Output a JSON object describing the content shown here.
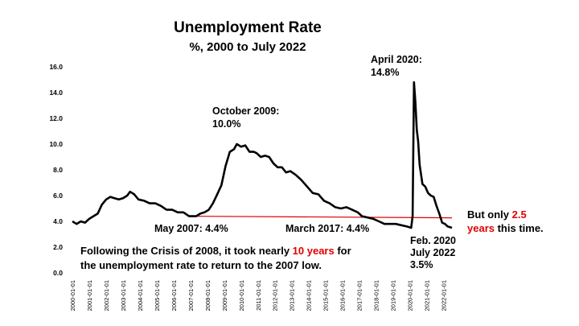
{
  "chart_data": {
    "type": "line",
    "title": "Unemployment Rate",
    "subtitle": "%, 2000 to July 2022",
    "ylim": [
      0,
      16
    ],
    "yticks": [
      "0.0",
      "2.0",
      "4.0",
      "6.0",
      "8.0",
      "10.0",
      "12.0",
      "14.0",
      "16.0"
    ],
    "xticks": [
      "2000-01-01",
      "2001-01-01",
      "2002-01-01",
      "2003-01-01",
      "2004-01-01",
      "2005-01-01",
      "2006-01-01",
      "2007-01-01",
      "2008-01-01",
      "2009-01-01",
      "2010-01-01",
      "2011-01-01",
      "2012-01-01",
      "2013-01-01",
      "2014-01-01",
      "2015-01-01",
      "2016-01-01",
      "2017-01-01",
      "2018-01-01",
      "2019-01-01",
      "2020-01-01",
      "2021-01-01",
      "2022-01-01"
    ],
    "grid": false,
    "legend": "none",
    "series_color": "#000000",
    "reference_color": "#e00000",
    "reference_line": {
      "from": "2007-05",
      "to": "2022-07",
      "value": 4.4
    },
    "series": [
      {
        "points": [
          [
            "2000-01",
            4.0
          ],
          [
            "2000-04",
            3.8
          ],
          [
            "2000-07",
            4.0
          ],
          [
            "2000-10",
            3.9
          ],
          [
            "2001-01",
            4.2
          ],
          [
            "2001-04",
            4.4
          ],
          [
            "2001-07",
            4.6
          ],
          [
            "2001-10",
            5.3
          ],
          [
            "2002-01",
            5.7
          ],
          [
            "2002-04",
            5.9
          ],
          [
            "2002-07",
            5.8
          ],
          [
            "2002-10",
            5.7
          ],
          [
            "2003-01",
            5.8
          ],
          [
            "2003-04",
            6.0
          ],
          [
            "2003-06",
            6.3
          ],
          [
            "2003-09",
            6.1
          ],
          [
            "2003-12",
            5.7
          ],
          [
            "2004-04",
            5.6
          ],
          [
            "2004-08",
            5.4
          ],
          [
            "2004-12",
            5.4
          ],
          [
            "2005-04",
            5.2
          ],
          [
            "2005-08",
            4.9
          ],
          [
            "2005-12",
            4.9
          ],
          [
            "2006-04",
            4.7
          ],
          [
            "2006-08",
            4.7
          ],
          [
            "2006-12",
            4.4
          ],
          [
            "2007-03",
            4.4
          ],
          [
            "2007-05",
            4.4
          ],
          [
            "2007-08",
            4.6
          ],
          [
            "2007-11",
            4.7
          ],
          [
            "2008-02",
            4.9
          ],
          [
            "2008-05",
            5.4
          ],
          [
            "2008-08",
            6.1
          ],
          [
            "2008-11",
            6.8
          ],
          [
            "2009-02",
            8.3
          ],
          [
            "2009-05",
            9.4
          ],
          [
            "2009-08",
            9.6
          ],
          [
            "2009-10",
            10.0
          ],
          [
            "2010-01",
            9.8
          ],
          [
            "2010-04",
            9.9
          ],
          [
            "2010-07",
            9.4
          ],
          [
            "2010-10",
            9.4
          ],
          [
            "2010-12",
            9.3
          ],
          [
            "2011-03",
            9.0
          ],
          [
            "2011-06",
            9.1
          ],
          [
            "2011-09",
            9.0
          ],
          [
            "2011-12",
            8.5
          ],
          [
            "2012-03",
            8.2
          ],
          [
            "2012-06",
            8.2
          ],
          [
            "2012-09",
            7.8
          ],
          [
            "2012-12",
            7.9
          ],
          [
            "2013-04",
            7.6
          ],
          [
            "2013-08",
            7.2
          ],
          [
            "2013-12",
            6.7
          ],
          [
            "2014-04",
            6.2
          ],
          [
            "2014-08",
            6.1
          ],
          [
            "2014-12",
            5.6
          ],
          [
            "2015-04",
            5.4
          ],
          [
            "2015-08",
            5.1
          ],
          [
            "2015-12",
            5.0
          ],
          [
            "2016-04",
            5.1
          ],
          [
            "2016-08",
            4.9
          ],
          [
            "2016-12",
            4.7
          ],
          [
            "2017-03",
            4.4
          ],
          [
            "2017-07",
            4.3
          ],
          [
            "2017-11",
            4.2
          ],
          [
            "2018-03",
            4.0
          ],
          [
            "2018-07",
            3.8
          ],
          [
            "2018-11",
            3.8
          ],
          [
            "2019-03",
            3.8
          ],
          [
            "2019-07",
            3.7
          ],
          [
            "2019-11",
            3.6
          ],
          [
            "2020-02",
            3.5
          ],
          [
            "2020-03",
            4.4
          ],
          [
            "2020-04",
            14.8
          ],
          [
            "2020-05",
            13.3
          ],
          [
            "2020-06",
            11.1
          ],
          [
            "2020-07",
            10.2
          ],
          [
            "2020-08",
            8.4
          ],
          [
            "2020-10",
            6.9
          ],
          [
            "2020-12",
            6.7
          ],
          [
            "2021-02",
            6.2
          ],
          [
            "2021-04",
            6.0
          ],
          [
            "2021-06",
            5.9
          ],
          [
            "2021-08",
            5.2
          ],
          [
            "2021-10",
            4.6
          ],
          [
            "2021-12",
            3.9
          ],
          [
            "2022-02",
            3.8
          ],
          [
            "2022-04",
            3.6
          ],
          [
            "2022-07",
            3.5
          ]
        ]
      }
    ],
    "annotations": {
      "peak_2009": [
        "October 2009:",
        "10.0%"
      ],
      "peak_2020": [
        "April 2020:",
        "14.8%"
      ],
      "low_2007": "May 2007: 4.4%",
      "low_2017": "March 2017: 4.4%",
      "feb_2020": [
        "Feb. 2020",
        "July 2022",
        "3.5%"
      ],
      "right_note": {
        "a": "But only ",
        "b": "2.5",
        "c": "years",
        "d": " this time."
      },
      "footnote": {
        "a": "Following the Crisis of 2008, it took nearly ",
        "b": "10 years",
        "c": " for",
        "line2": "the unemployment rate to return to the 2007 low."
      }
    }
  }
}
